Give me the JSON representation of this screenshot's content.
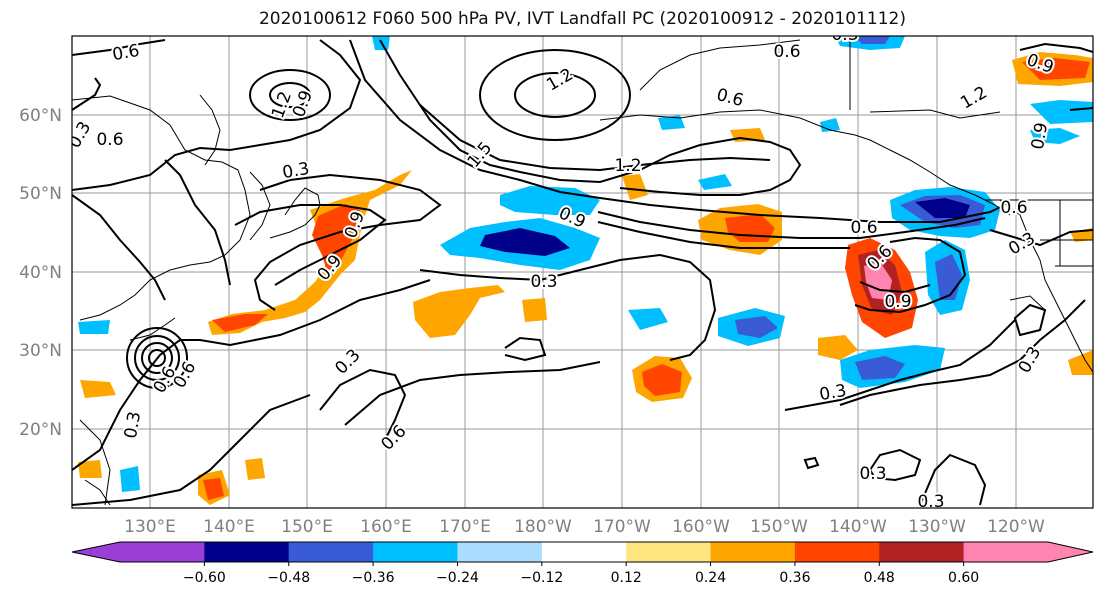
{
  "title": "2020100612 F060 500 hPa PV, IVT Landfall PC (2020100912 - 2020101112)",
  "lat_labels": [
    "60°N",
    "50°N",
    "40°N",
    "30°N",
    "20°N"
  ],
  "lon_labels": [
    "130°E",
    "140°E",
    "150°E",
    "160°E",
    "170°E",
    "180°W",
    "170°W",
    "160°W",
    "150°W",
    "140°W",
    "130°W",
    "120°W"
  ],
  "colorbar": {
    "colors": [
      "#9b3ed6",
      "#00008b",
      "#3a5bd6",
      "#00bfff",
      "#aadcff",
      "#ffffff",
      "#ffe680",
      "#ffa500",
      "#ff4500",
      "#b22222",
      "#ff85b0"
    ],
    "tick_labels": [
      "−0.60",
      "−0.48",
      "−0.36",
      "−0.24",
      "−0.12",
      "0.12",
      "0.24",
      "0.36",
      "0.48",
      "0.60"
    ]
  },
  "contour_labels": [
    "0.6",
    "1.2",
    "0.9",
    "0.3",
    "0.6",
    "1.2",
    "0.3",
    "1.5",
    "0.6",
    "0.9",
    "0.6",
    "1.2",
    "0.9",
    "0.9",
    "0.3",
    "0.6",
    "0.9",
    "1.2",
    "0.9",
    "0.6",
    "0.3",
    "0.6",
    "0.3",
    "0.3",
    "0.6",
    "0.6",
    "0.3",
    "0.3",
    "0.3",
    "0.3",
    "0.9",
    "0.3",
    "0.6"
  ]
}
